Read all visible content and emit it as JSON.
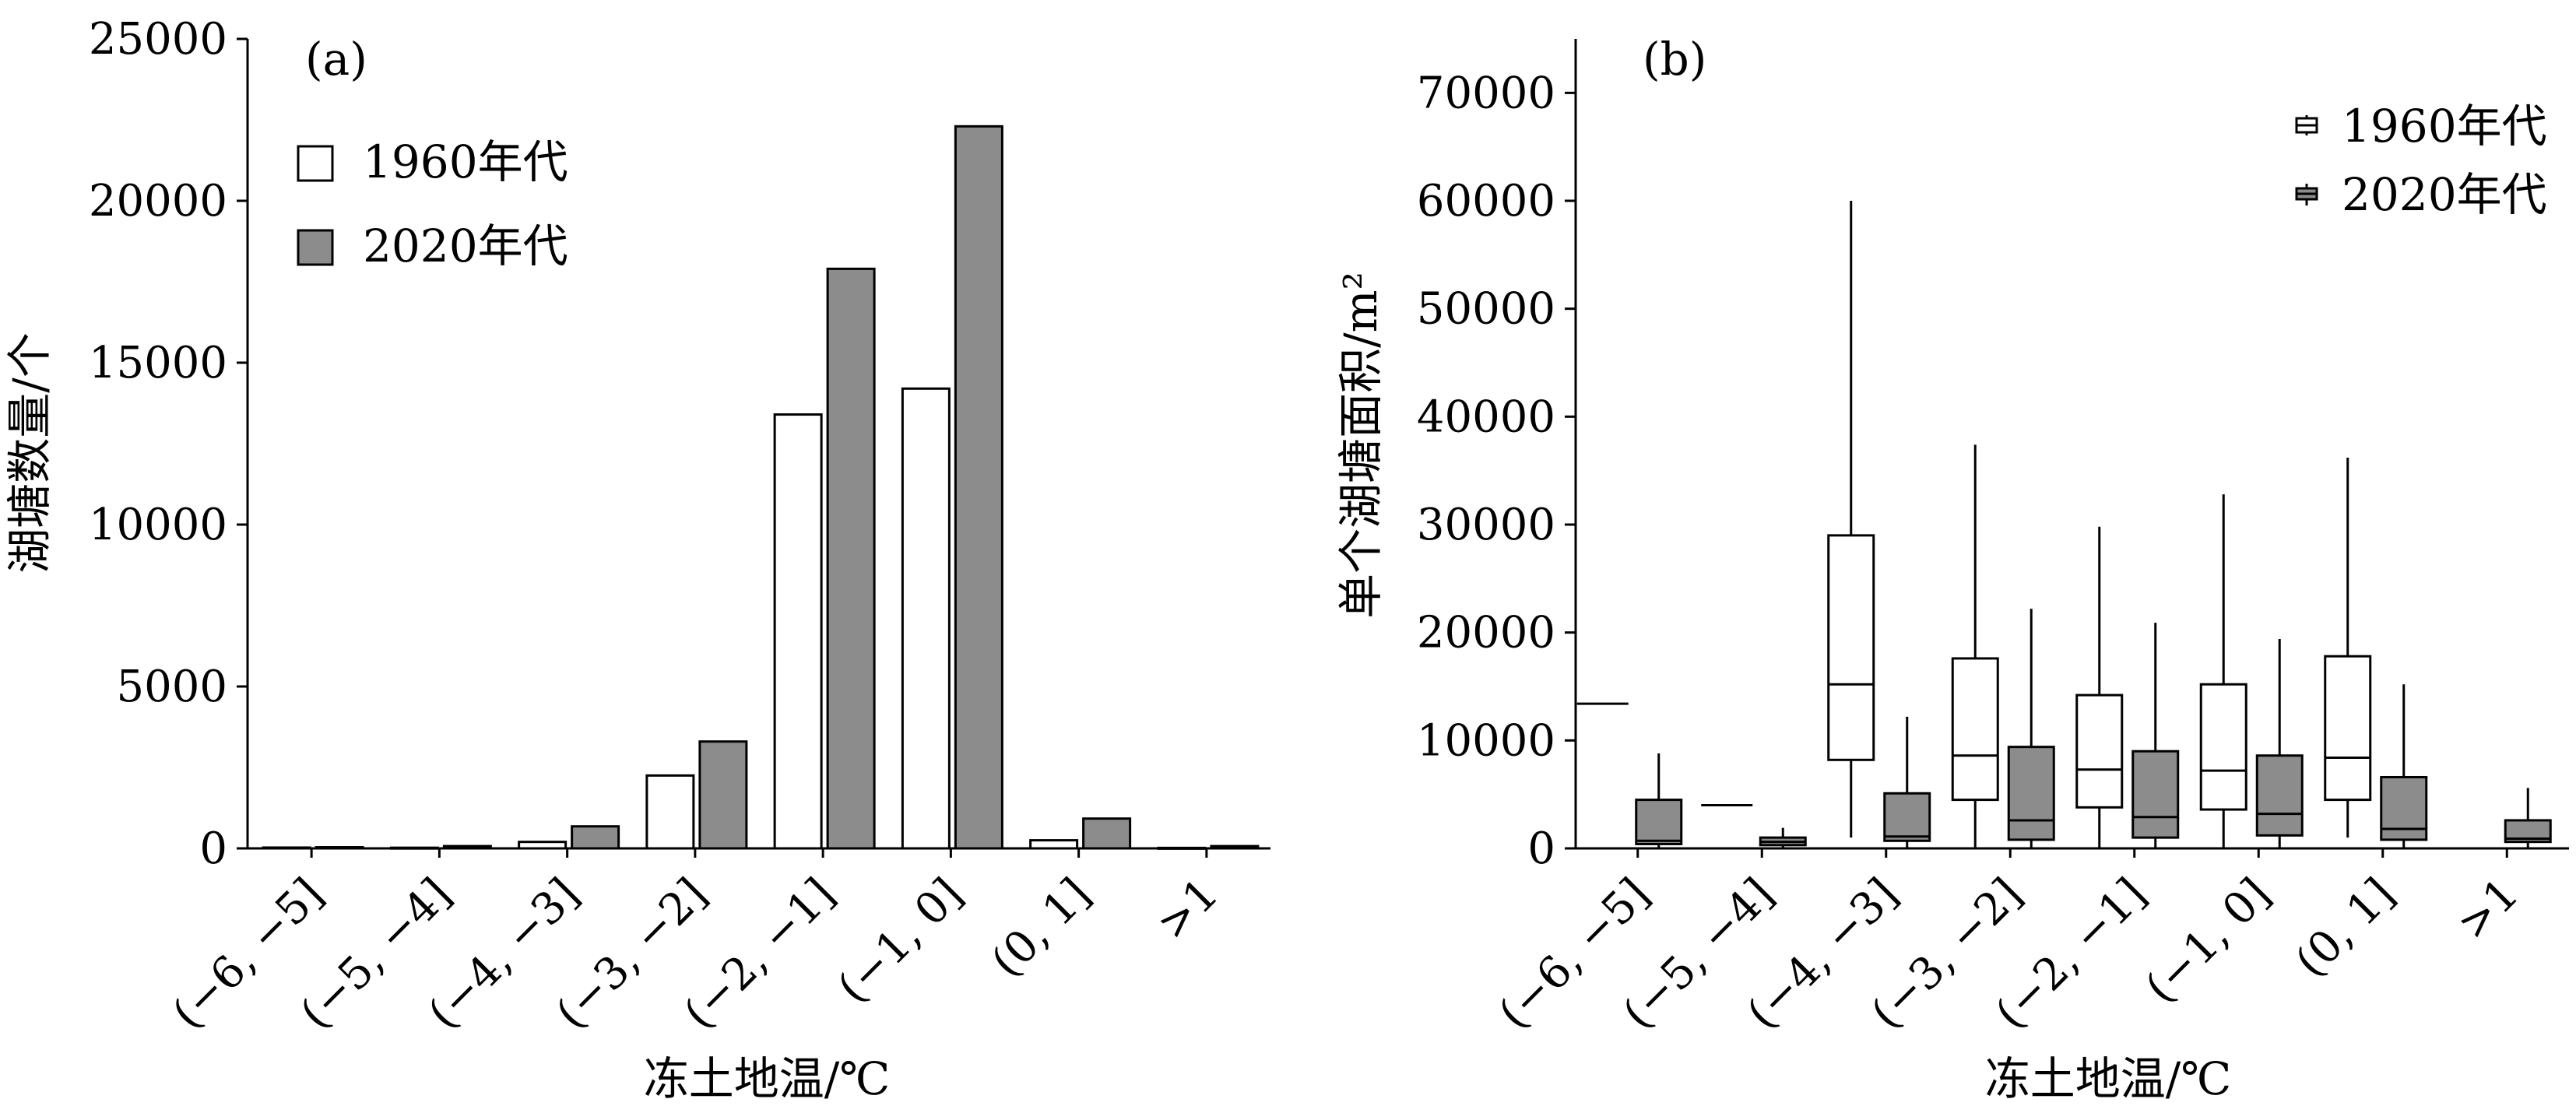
{
  "chart_data": [
    {
      "type": "bar",
      "panel_label": "(a)",
      "categories": [
        "(−6, −5]",
        "(−5, −4]",
        "(−4, −3]",
        "(−3, −2]",
        "(−2, −1]",
        "(−1, 0]",
        "(0, 1]",
        ">1"
      ],
      "series": [
        {
          "name": "1960年代",
          "color": "#ffffff",
          "values": [
            25,
            20,
            200,
            2250,
            13400,
            14200,
            250,
            15
          ]
        },
        {
          "name": "2020年代",
          "color": "#8c8c8c",
          "values": [
            35,
            70,
            680,
            3300,
            17900,
            22300,
            920,
            70
          ]
        }
      ],
      "xlabel": "冻土地温/℃",
      "ylabel": "湖塘数量/个",
      "ylim": [
        0,
        25000
      ],
      "yticks": [
        "0",
        "5000",
        "10000",
        "15000",
        "20000",
        "25000"
      ],
      "legend_position": "top-left",
      "grid": false
    },
    {
      "type": "box",
      "panel_label": "(b)",
      "categories": [
        "(−6, −5]",
        "(−5, −4]",
        "(−4, −3]",
        "(−3, −2]",
        "(−2, −1]",
        "(−1, 0]",
        "(0, 1]",
        ">1"
      ],
      "series": [
        {
          "name": "1960年代",
          "color": "#ffffff",
          "boxes": [
            {
              "min": 13400,
              "q1": 13400,
              "median": 13400,
              "q3": 13400,
              "max": 13400
            },
            {
              "min": 4000,
              "q1": 4000,
              "median": 4000,
              "q3": 4000,
              "max": 4000
            },
            {
              "min": 1000,
              "q1": 8200,
              "median": 15200,
              "q3": 29000,
              "max": 60000
            },
            {
              "min": 0,
              "q1": 4500,
              "median": 8600,
              "q3": 17600,
              "max": 37400
            },
            {
              "min": 0,
              "q1": 3800,
              "median": 7300,
              "q3": 14200,
              "max": 29800
            },
            {
              "min": 0,
              "q1": 3600,
              "median": 7200,
              "q3": 15200,
              "max": 32800
            },
            {
              "min": 1000,
              "q1": 4500,
              "median": 8400,
              "q3": 17800,
              "max": 36200
            },
            {
              "min": 0,
              "q1": 0,
              "median": 0,
              "q3": 0,
              "max": 0
            }
          ]
        },
        {
          "name": "2020年代",
          "color": "#8c8c8c",
          "boxes": [
            {
              "min": 0,
              "q1": 400,
              "median": 700,
              "q3": 4500,
              "max": 8800
            },
            {
              "min": 0,
              "q1": 300,
              "median": 600,
              "q3": 1000,
              "max": 1900
            },
            {
              "min": 0,
              "q1": 700,
              "median": 1100,
              "q3": 5100,
              "max": 12200
            },
            {
              "min": 0,
              "q1": 800,
              "median": 2600,
              "q3": 9400,
              "max": 22200
            },
            {
              "min": 0,
              "q1": 1000,
              "median": 2900,
              "q3": 9000,
              "max": 20900
            },
            {
              "min": 0,
              "q1": 1200,
              "median": 3200,
              "q3": 8600,
              "max": 19400
            },
            {
              "min": 0,
              "q1": 800,
              "median": 1800,
              "q3": 6600,
              "max": 15200
            },
            {
              "min": 0,
              "q1": 600,
              "median": 900,
              "q3": 2600,
              "max": 5600
            }
          ]
        }
      ],
      "xlabel": "冻土地温/℃",
      "ylabel": "单个湖塘面积/m²",
      "ylim": [
        0,
        75000
      ],
      "yticks": [
        "0",
        "10000",
        "20000",
        "30000",
        "40000",
        "50000",
        "60000",
        "70000"
      ],
      "legend_position": "top-right",
      "grid": false
    }
  ]
}
